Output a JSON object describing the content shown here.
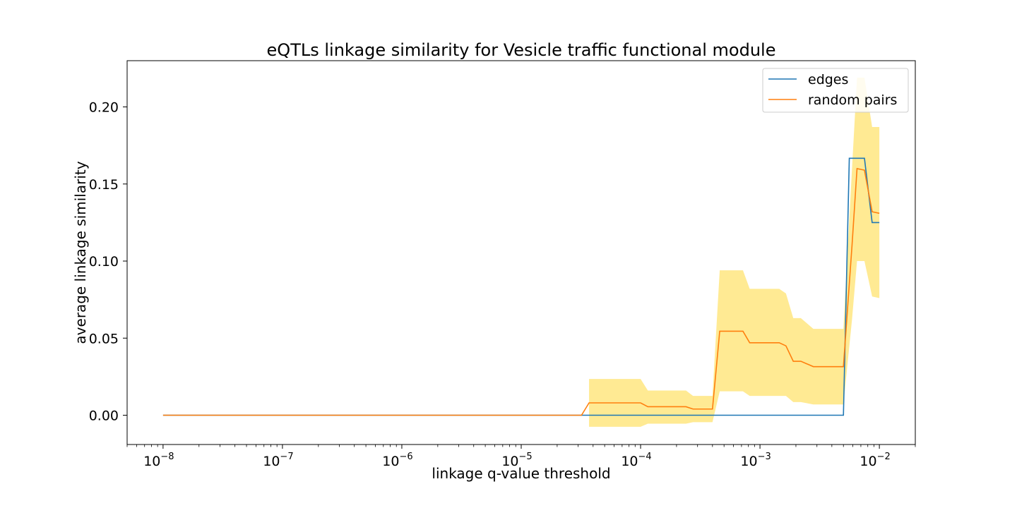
{
  "chart_data": {
    "type": "line",
    "title": "eQTLs linkage similarity for Vesicle traffic functional module",
    "xlabel": "linkage q-value threshold",
    "ylabel": "average linkage similarity",
    "xscale": "log",
    "xlim": [
      5e-09,
      0.02
    ],
    "ylim": [
      -0.019,
      0.23
    ],
    "xticks": [
      {
        "value": 1e-08,
        "base": "10",
        "exp": "−8"
      },
      {
        "value": 1e-07,
        "base": "10",
        "exp": "−7"
      },
      {
        "value": 1e-06,
        "base": "10",
        "exp": "−6"
      },
      {
        "value": 1e-05,
        "base": "10",
        "exp": "−5"
      },
      {
        "value": 0.0001,
        "base": "10",
        "exp": "−4"
      },
      {
        "value": 0.001,
        "base": "10",
        "exp": "−3"
      },
      {
        "value": 0.01,
        "base": "10",
        "exp": "−2"
      }
    ],
    "yticks": [
      {
        "value": 0.0,
        "label": "0.00"
      },
      {
        "value": 0.05,
        "label": "0.05"
      },
      {
        "value": 0.1,
        "label": "0.10"
      },
      {
        "value": 0.15,
        "label": "0.15"
      },
      {
        "value": 0.2,
        "label": "0.20"
      }
    ],
    "legend_position": "top-right",
    "series": [
      {
        "name": "edges",
        "color": "#1f77b4",
        "x": [
          1e-08,
          3.2e-05,
          0.0004,
          0.005,
          0.0056,
          0.0075,
          0.0087,
          0.01
        ],
        "y": [
          0,
          0,
          0,
          0,
          0.1667,
          0.1667,
          0.125,
          0.125
        ]
      },
      {
        "name": "random pairs",
        "color": "#ff7f0e",
        "x": [
          1e-08,
          3.2e-05,
          3.7e-05,
          0.0001,
          0.000115,
          0.00024,
          0.000275,
          0.0004,
          0.00046,
          0.00072,
          0.00082,
          0.00145,
          0.00165,
          0.0019,
          0.0022,
          0.0028,
          0.005,
          0.0059,
          0.0065,
          0.0075,
          0.0087,
          0.01
        ],
        "y": [
          0,
          0,
          0.008,
          0.008,
          0.0055,
          0.0055,
          0.004,
          0.004,
          0.0545,
          0.0545,
          0.047,
          0.047,
          0.045,
          0.035,
          0.035,
          0.0315,
          0.0315,
          0.11,
          0.16,
          0.159,
          0.132,
          0.131
        ]
      }
    ],
    "band": {
      "color": "#ffe680",
      "x": [
        3.7e-05,
        0.0001,
        0.000115,
        0.00024,
        0.000275,
        0.0004,
        0.00046,
        0.00072,
        0.00082,
        0.00145,
        0.00165,
        0.0019,
        0.0022,
        0.0028,
        0.005,
        0.0059,
        0.0065,
        0.0075,
        0.0087,
        0.01
      ],
      "upper": [
        0.0235,
        0.0235,
        0.016,
        0.016,
        0.0125,
        0.0125,
        0.094,
        0.094,
        0.082,
        0.082,
        0.079,
        0.063,
        0.063,
        0.056,
        0.056,
        0.16,
        0.219,
        0.219,
        0.187,
        0.187
      ],
      "lower": [
        -0.0075,
        -0.0075,
        -0.0055,
        -0.0055,
        -0.0045,
        -0.0045,
        0.0155,
        0.0155,
        0.0125,
        0.0125,
        0.0125,
        0.0085,
        0.0085,
        0.007,
        0.007,
        0.062,
        0.1,
        0.1,
        0.077,
        0.076
      ]
    }
  }
}
